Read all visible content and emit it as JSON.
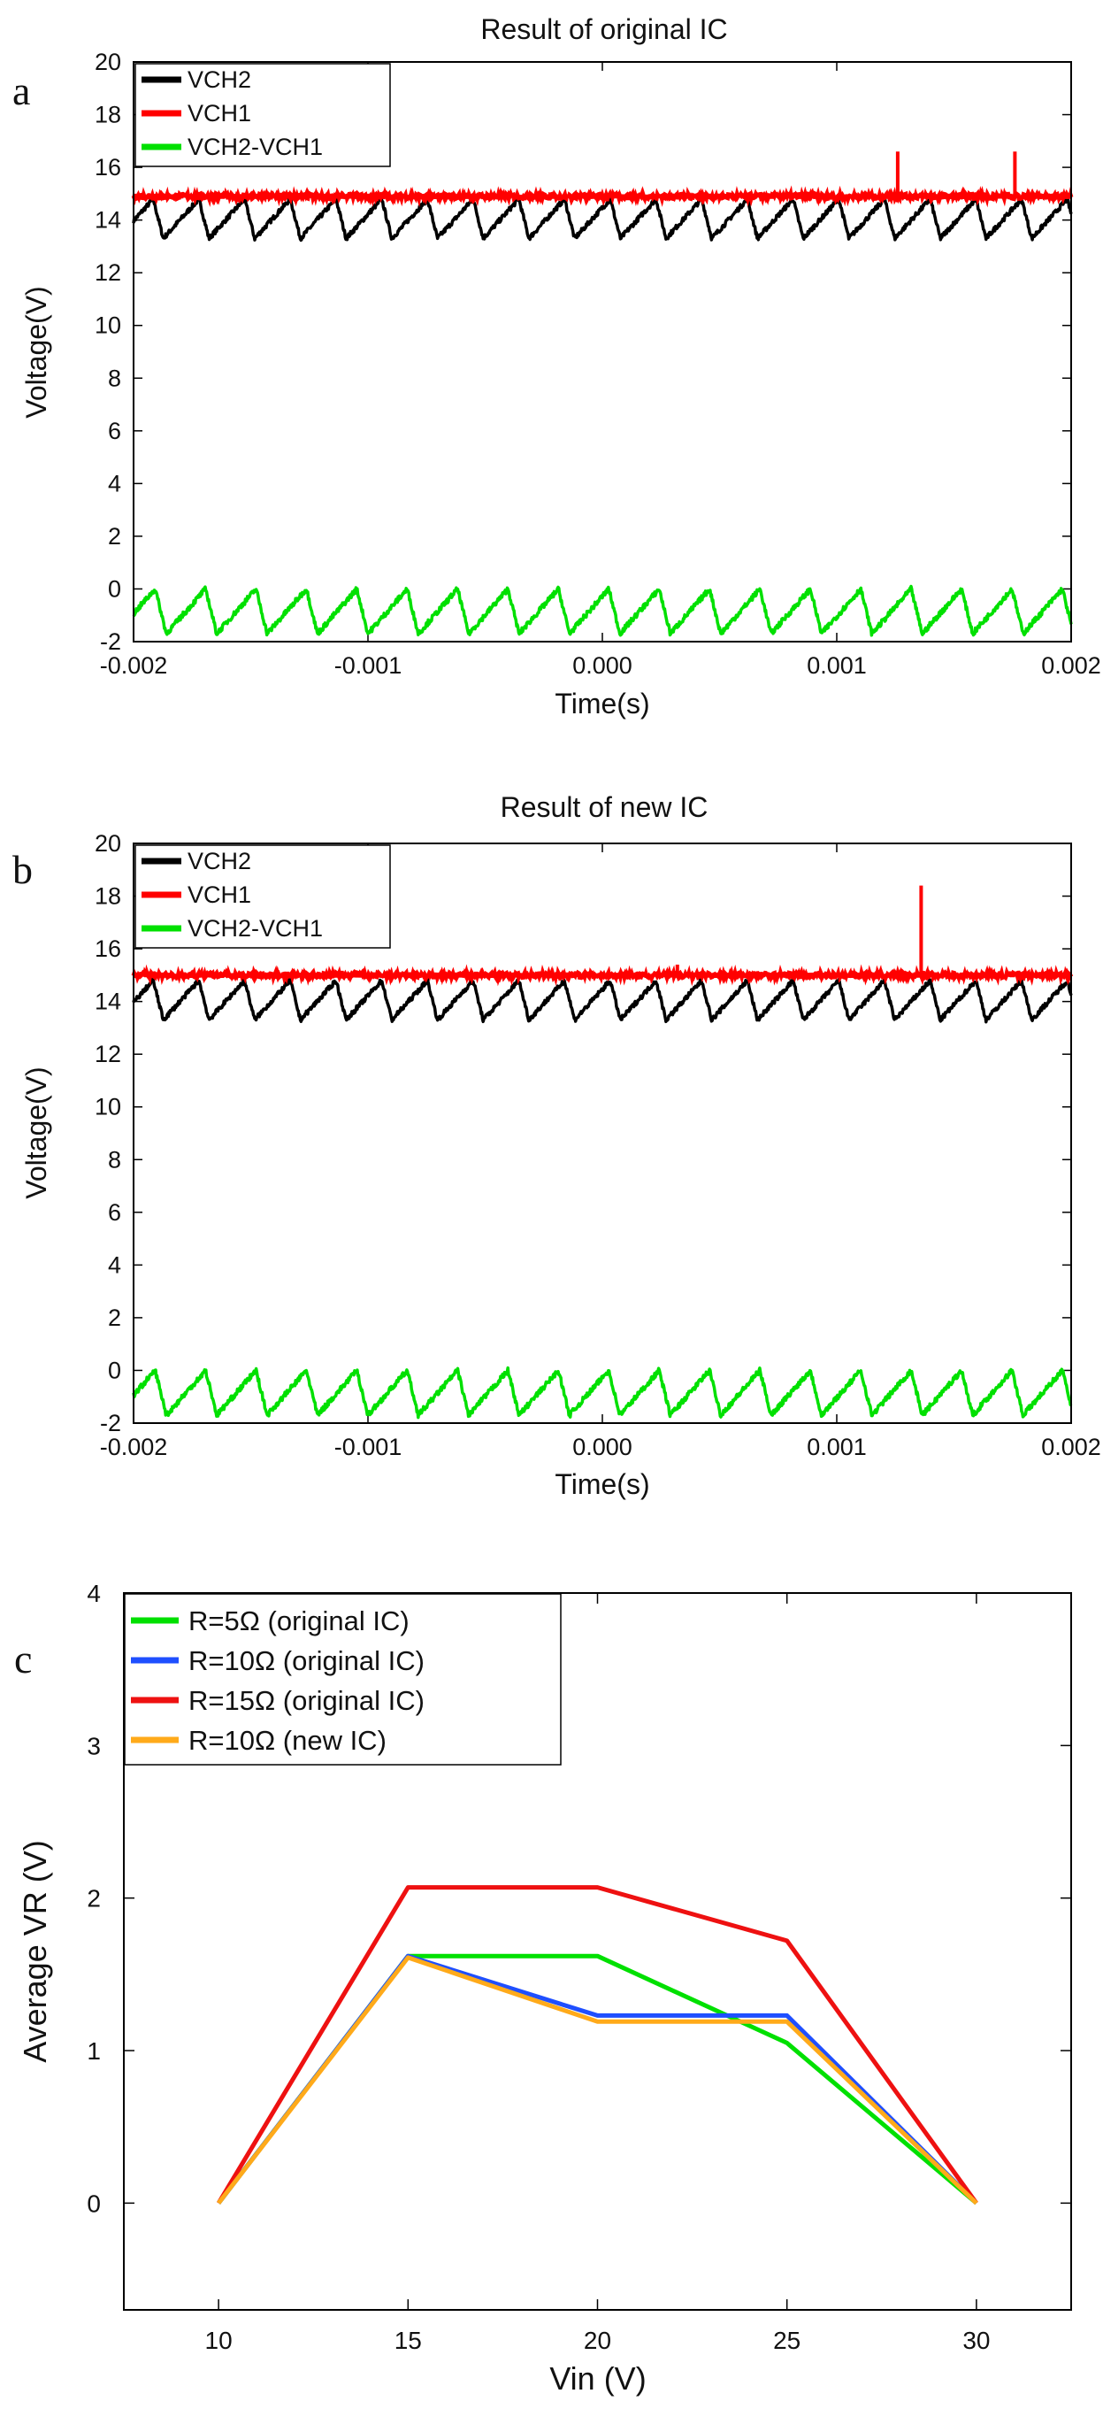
{
  "chart_data": [
    {
      "panel": "a",
      "type": "line",
      "title": "Result of original IC",
      "xlabel": "Time(s)",
      "ylabel": "Voltage(V)",
      "xlim": [
        -0.002,
        0.002
      ],
      "ylim": [
        -2,
        20
      ],
      "xticks": [
        "-0.002",
        "-0.001",
        "0.000",
        "0.001",
        "0.002"
      ],
      "yticks": [
        "-2",
        "0",
        "2",
        "4",
        "6",
        "8",
        "10",
        "12",
        "14",
        "16",
        "18",
        "20"
      ],
      "legend_position": "top-left",
      "series": [
        {
          "name": "VCH2",
          "color": "#000000",
          "kind": "sawtooth",
          "low": 13.3,
          "high": 14.8,
          "period_s": 0.000195
        },
        {
          "name": "VCH1",
          "color": "#ff0000",
          "kind": "flat",
          "level": 14.9,
          "spikes": [
            {
              "t": 0.00126,
              "v": 16.6
            },
            {
              "t": 0.00176,
              "v": 16.6
            }
          ]
        },
        {
          "name": "VCH2-VCH1",
          "color": "#00e000",
          "kind": "sawtooth",
          "low": -1.7,
          "high": 0.0,
          "period_s": 0.000215
        }
      ]
    },
    {
      "panel": "b",
      "type": "line",
      "title": "Result of new IC",
      "xlabel": "Time(s)",
      "ylabel": "Voltage(V)",
      "xlim": [
        -0.002,
        0.002
      ],
      "ylim": [
        -2,
        20
      ],
      "xticks": [
        "-0.002",
        "-0.001",
        "0.000",
        "0.001",
        "0.002"
      ],
      "yticks": [
        "-2",
        "0",
        "2",
        "4",
        "6",
        "8",
        "10",
        "12",
        "14",
        "16",
        "18",
        "20"
      ],
      "legend_position": "top-left",
      "series": [
        {
          "name": "VCH2",
          "color": "#000000",
          "kind": "sawtooth",
          "low": 13.3,
          "high": 14.8,
          "period_s": 0.000195
        },
        {
          "name": "VCH1",
          "color": "#ff0000",
          "kind": "flat",
          "level": 15.0,
          "spikes": [
            {
              "t": 0.00136,
              "v": 18.4
            },
            {
              "t": 0.00032,
              "v": 15.4
            }
          ]
        },
        {
          "name": "VCH2-VCH1",
          "color": "#00e000",
          "kind": "sawtooth",
          "low": -1.7,
          "high": 0.0,
          "period_s": 0.000215
        }
      ]
    },
    {
      "panel": "c",
      "type": "line",
      "title": "",
      "xlabel": "Vin (V)",
      "ylabel": "Average VR (V)",
      "xlim": [
        7.5,
        32.5
      ],
      "ylim": [
        -0.7,
        4
      ],
      "xticks": [
        "10",
        "15",
        "20",
        "25",
        "30"
      ],
      "yticks": [
        "0",
        "1",
        "2",
        "3",
        "4"
      ],
      "legend_position": "top-left",
      "x": [
        10,
        15,
        20,
        25,
        30
      ],
      "series": [
        {
          "name": "R=5Ω (original IC)",
          "color": "#00e000",
          "values": [
            0,
            1.62,
            1.62,
            1.05,
            0
          ]
        },
        {
          "name": "R=10Ω (original IC)",
          "color": "#1f4fff",
          "values": [
            0,
            1.62,
            1.23,
            1.23,
            0
          ]
        },
        {
          "name": "R=15Ω (original IC)",
          "color": "#ee1111",
          "values": [
            0,
            2.07,
            2.07,
            1.72,
            0
          ]
        },
        {
          "name": "R=10Ω (new IC)",
          "color": "#ffaa1a",
          "values": [
            0,
            1.61,
            1.19,
            1.19,
            0
          ]
        }
      ]
    }
  ]
}
